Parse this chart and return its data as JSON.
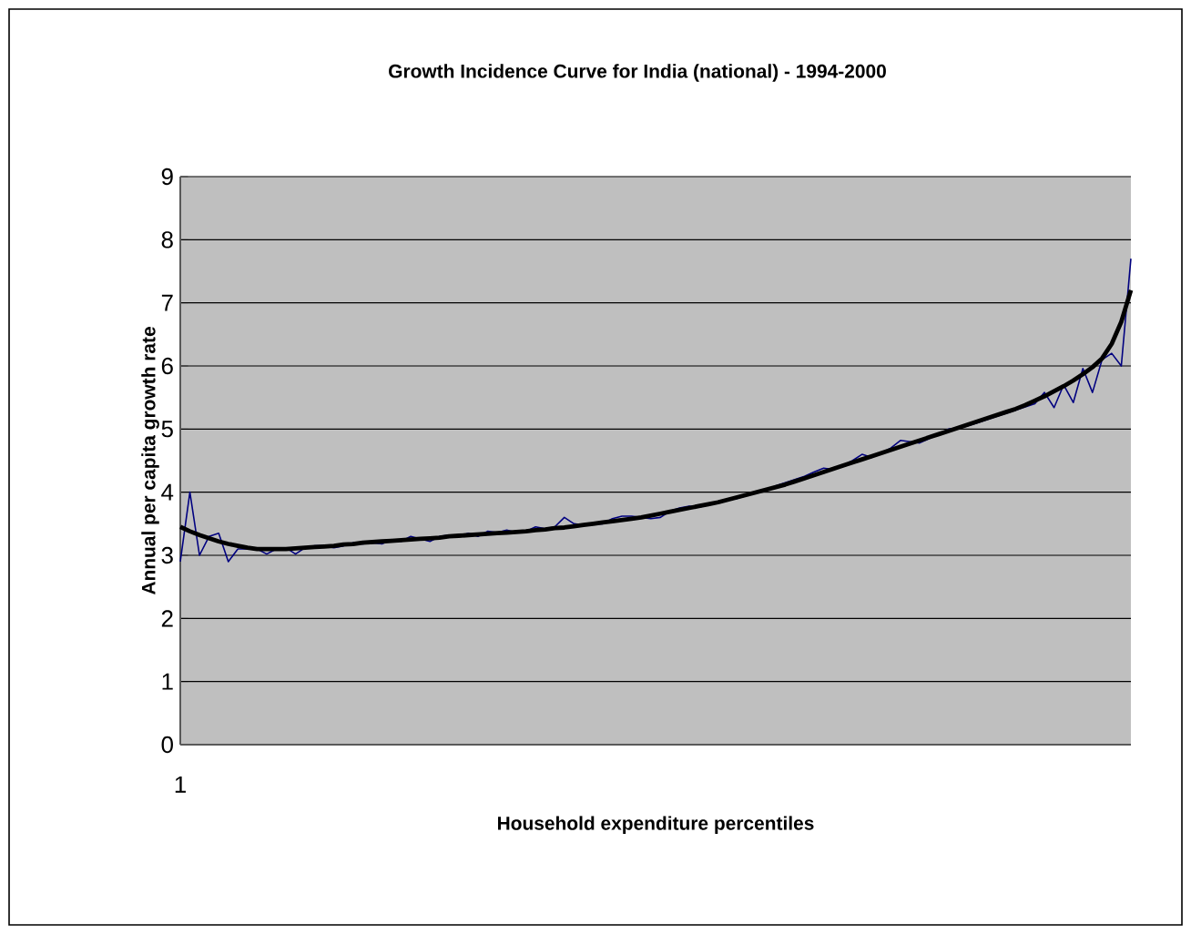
{
  "chart_data": {
    "type": "line",
    "title": "Growth Incidence Curve for India (national) - 1994-2000",
    "xlabel": "Household expenditure percentiles",
    "ylabel": "Annual per capita growth rate",
    "categories": [
      "1",
      null,
      null,
      null,
      null,
      null,
      null,
      null,
      null,
      null,
      null,
      null,
      null,
      null,
      null,
      null,
      null,
      null,
      null,
      null,
      null,
      null,
      null,
      null,
      null,
      null,
      null,
      null,
      null,
      null,
      null,
      null,
      null,
      null,
      null,
      null,
      null,
      null,
      null,
      null,
      null,
      null,
      null,
      null,
      null,
      null,
      null,
      null,
      null,
      null,
      null,
      null,
      null,
      null,
      null,
      null,
      null,
      null,
      null,
      null,
      null,
      null,
      null,
      null,
      null,
      null,
      null,
      null,
      null,
      null,
      null,
      null,
      null,
      null,
      null,
      null,
      null,
      null,
      null,
      null,
      null,
      null,
      null,
      null,
      null,
      null,
      null,
      null,
      null,
      null,
      null,
      null,
      null,
      null,
      null,
      null,
      null,
      null,
      null,
      null
    ],
    "series": [
      {
        "color": "#000080",
        "values": [
          2.9,
          4.0,
          3.0,
          3.3,
          3.35,
          2.9,
          3.1,
          3.1,
          3.1,
          3.02,
          3.1,
          3.12,
          3.02,
          3.12,
          3.15,
          3.15,
          3.12,
          3.15,
          3.2,
          3.18,
          3.2,
          3.18,
          3.25,
          3.22,
          3.3,
          3.26,
          3.22,
          3.3,
          3.32,
          3.3,
          3.35,
          3.3,
          3.38,
          3.36,
          3.4,
          3.36,
          3.38,
          3.45,
          3.42,
          3.45,
          3.6,
          3.5,
          3.48,
          3.5,
          3.5,
          3.58,
          3.62,
          3.62,
          3.6,
          3.58,
          3.6,
          3.7,
          3.75,
          3.78,
          3.76,
          3.8,
          3.85,
          3.88,
          3.9,
          3.95,
          4.0,
          4.03,
          4.1,
          4.15,
          4.2,
          4.25,
          4.32,
          4.38,
          4.36,
          4.42,
          4.5,
          4.6,
          4.55,
          4.62,
          4.7,
          4.82,
          4.8,
          4.78,
          4.85,
          4.92,
          5.0,
          5.02,
          5.05,
          5.1,
          5.15,
          5.2,
          5.25,
          5.3,
          5.35,
          5.4,
          5.58,
          5.34,
          5.7,
          5.42,
          5.96,
          5.58,
          6.1,
          6.2,
          6.0,
          7.7
        ]
      },
      {
        "color": "#000000",
        "values": [
          3.45,
          3.38,
          3.32,
          3.27,
          3.22,
          3.18,
          3.15,
          3.12,
          3.1,
          3.1,
          3.1,
          3.1,
          3.11,
          3.12,
          3.13,
          3.14,
          3.15,
          3.17,
          3.18,
          3.2,
          3.21,
          3.22,
          3.23,
          3.24,
          3.25,
          3.26,
          3.27,
          3.28,
          3.3,
          3.31,
          3.32,
          3.33,
          3.34,
          3.35,
          3.36,
          3.37,
          3.38,
          3.4,
          3.41,
          3.43,
          3.44,
          3.46,
          3.48,
          3.5,
          3.52,
          3.54,
          3.56,
          3.58,
          3.6,
          3.63,
          3.66,
          3.69,
          3.72,
          3.75,
          3.78,
          3.81,
          3.84,
          3.88,
          3.92,
          3.96,
          4.0,
          4.04,
          4.08,
          4.12,
          4.17,
          4.22,
          4.27,
          4.32,
          4.37,
          4.42,
          4.47,
          4.52,
          4.57,
          4.62,
          4.67,
          4.72,
          4.77,
          4.82,
          4.87,
          4.92,
          4.97,
          5.02,
          5.07,
          5.12,
          5.17,
          5.22,
          5.27,
          5.32,
          5.38,
          5.45,
          5.52,
          5.6,
          5.68,
          5.77,
          5.87,
          5.98,
          6.12,
          6.35,
          6.7,
          7.2
        ]
      }
    ],
    "ylim": [
      0,
      9
    ],
    "yticks": [
      0,
      1,
      2,
      3,
      4,
      5,
      6,
      7,
      8,
      9
    ],
    "grid": "y",
    "marker": "none",
    "line_style": "solid"
  }
}
